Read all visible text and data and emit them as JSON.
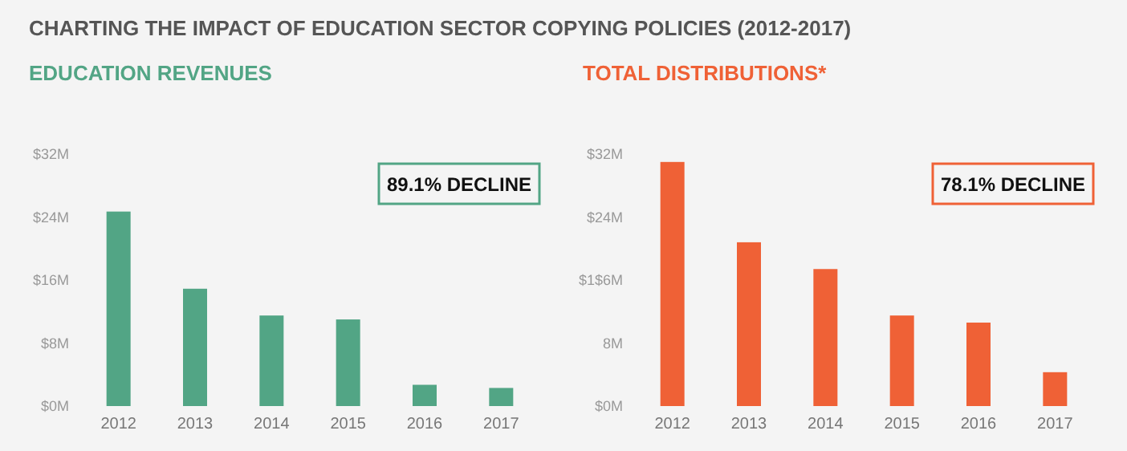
{
  "chart_data": [
    {
      "type": "bar",
      "title": "CHARTING THE IMPACT OF EDUCATION SECTOR COPYING POLICIES (2012-2017)",
      "subtitle": "EDUCATION REVENUES",
      "categories": [
        "2012",
        "2013",
        "2014",
        "2015",
        "2016",
        "2017"
      ],
      "values": [
        24.7,
        14.9,
        11.5,
        11.0,
        2.7,
        2.3
      ],
      "color": "#52a585",
      "ylim": [
        0,
        32
      ],
      "yticks": [
        {
          "value": 0,
          "label": "$0M"
        },
        {
          "value": 8,
          "label": "$8M"
        },
        {
          "value": 16,
          "label": "$16M"
        },
        {
          "value": 24,
          "label": "$24M"
        },
        {
          "value": 32,
          "label": "$32M"
        }
      ],
      "annotations": [
        "89.1% DECLINE"
      ]
    },
    {
      "type": "bar",
      "subtitle": "TOTAL DISTRIBUTIONS*",
      "categories": [
        "2012",
        "2013",
        "2014",
        "2015",
        "2016",
        "2017"
      ],
      "values": [
        31.0,
        20.8,
        17.4,
        11.5,
        10.6,
        4.3
      ],
      "color": "#ef6136",
      "ylim": [
        0,
        32
      ],
      "yticks": [
        {
          "value": 0,
          "label": "$0M"
        },
        {
          "value": 8,
          "label": "8M"
        },
        {
          "value": 16,
          "label": "$1$6M"
        },
        {
          "value": 24,
          "label": "$24M"
        },
        {
          "value": 32,
          "label": "$32M"
        }
      ],
      "annotations": [
        "78.1% DECLINE"
      ]
    }
  ]
}
